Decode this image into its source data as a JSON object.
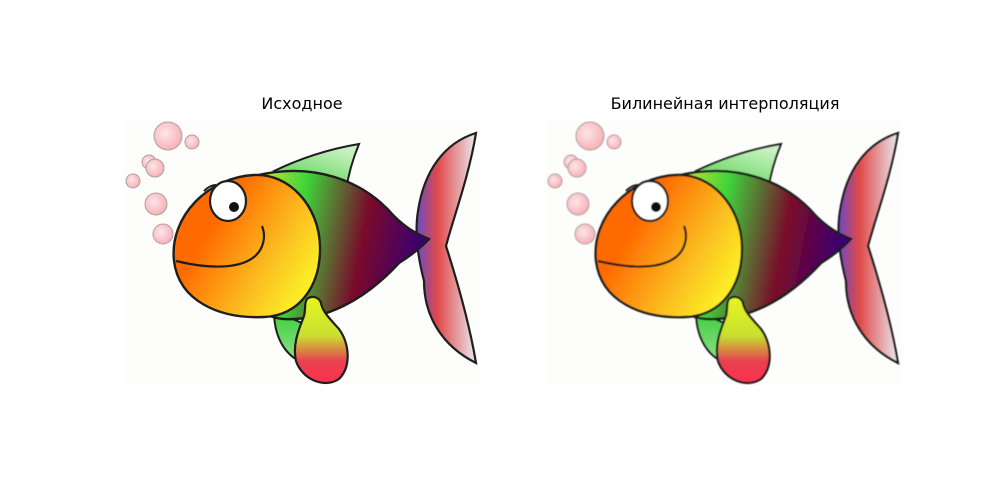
{
  "panels": [
    {
      "title": "Исходное",
      "smoothed": false
    },
    {
      "title": "Билинейная интерполяция",
      "smoothed": true
    }
  ],
  "colors": {
    "head": "#ff6a00",
    "body_yellow": "#fbec26",
    "body_green": "#3ed43a",
    "body_maroon": "#7a0a2a",
    "body_purple": "#3b0070",
    "outline": "#1e1e1e",
    "bubble": "#f5a9b0"
  }
}
